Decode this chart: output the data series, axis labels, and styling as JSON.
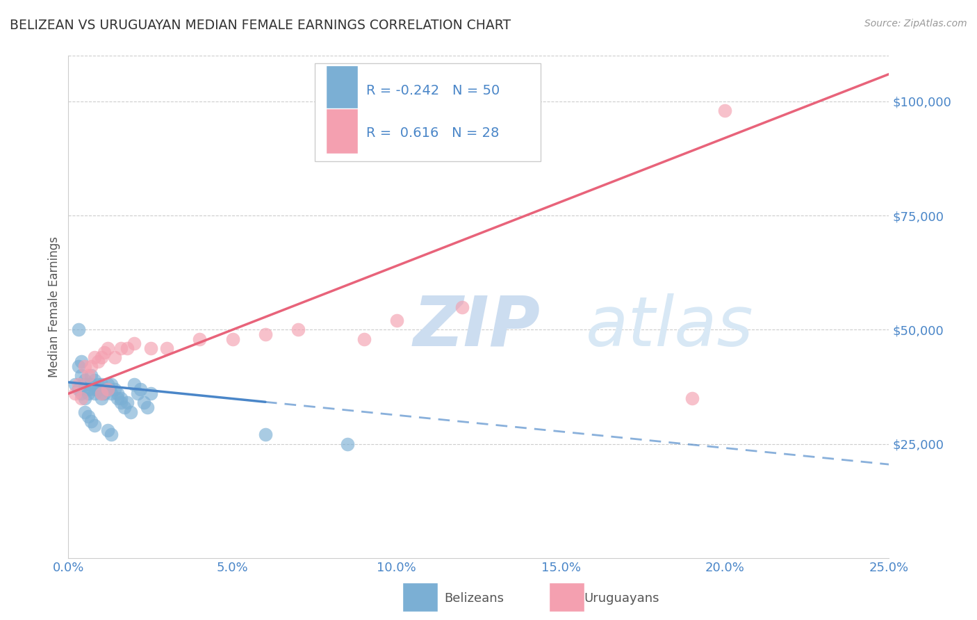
{
  "title": "BELIZEAN VS URUGUAYAN MEDIAN FEMALE EARNINGS CORRELATION CHART",
  "source": "Source: ZipAtlas.com",
  "ylabel": "Median Female Earnings",
  "xlabel_ticks": [
    "0.0%",
    "5.0%",
    "10.0%",
    "15.0%",
    "20.0%",
    "25.0%"
  ],
  "xlabel_vals": [
    0.0,
    0.05,
    0.1,
    0.15,
    0.2,
    0.25
  ],
  "ytick_labels": [
    "$25,000",
    "$50,000",
    "$75,000",
    "$100,000"
  ],
  "ytick_vals": [
    25000,
    50000,
    75000,
    100000
  ],
  "ylim": [
    0,
    110000
  ],
  "xlim": [
    0.0,
    0.25
  ],
  "belizean_R": -0.242,
  "belizean_N": 50,
  "uruguayan_R": 0.616,
  "uruguayan_N": 28,
  "belizean_color": "#7bafd4",
  "uruguayan_color": "#f4a0b0",
  "belizean_line_color": "#4a86c8",
  "uruguayan_line_color": "#e8637a",
  "watermark_color": "#ccddf0",
  "background_color": "#ffffff",
  "belizean_x": [
    0.002,
    0.003,
    0.003,
    0.004,
    0.004,
    0.005,
    0.005,
    0.005,
    0.006,
    0.006,
    0.007,
    0.007,
    0.008,
    0.008,
    0.008,
    0.009,
    0.009,
    0.01,
    0.01,
    0.01,
    0.011,
    0.011,
    0.012,
    0.012,
    0.013,
    0.013,
    0.014,
    0.015,
    0.015,
    0.016,
    0.016,
    0.017,
    0.018,
    0.019,
    0.02,
    0.021,
    0.022,
    0.023,
    0.024,
    0.025,
    0.003,
    0.004,
    0.005,
    0.006,
    0.007,
    0.008,
    0.012,
    0.013,
    0.06,
    0.085
  ],
  "belizean_y": [
    38000,
    37000,
    42000,
    40000,
    36000,
    38000,
    39000,
    35000,
    37000,
    36000,
    38000,
    40000,
    36000,
    37000,
    39000,
    38000,
    37000,
    36000,
    35000,
    38000,
    37000,
    36000,
    38000,
    37000,
    36000,
    38000,
    37000,
    35000,
    36000,
    35000,
    34000,
    33000,
    34000,
    32000,
    38000,
    36000,
    37000,
    34000,
    33000,
    36000,
    50000,
    43000,
    32000,
    31000,
    30000,
    29000,
    28000,
    27000,
    27000,
    25000
  ],
  "uruguayan_x": [
    0.002,
    0.003,
    0.004,
    0.005,
    0.006,
    0.007,
    0.008,
    0.009,
    0.01,
    0.011,
    0.012,
    0.014,
    0.016,
    0.018,
    0.02,
    0.025,
    0.03,
    0.04,
    0.05,
    0.06,
    0.07,
    0.09,
    0.1,
    0.12,
    0.01,
    0.012,
    0.19,
    0.2
  ],
  "uruguayan_y": [
    36000,
    38000,
    35000,
    42000,
    40000,
    42000,
    44000,
    43000,
    44000,
    45000,
    46000,
    44000,
    46000,
    46000,
    47000,
    46000,
    46000,
    48000,
    48000,
    49000,
    50000,
    48000,
    52000,
    55000,
    36000,
    37000,
    35000,
    98000
  ],
  "belizean_line_m": -72000,
  "belizean_line_b": 38500,
  "uruguayan_line_m": 280000,
  "uruguayan_line_b": 36000
}
